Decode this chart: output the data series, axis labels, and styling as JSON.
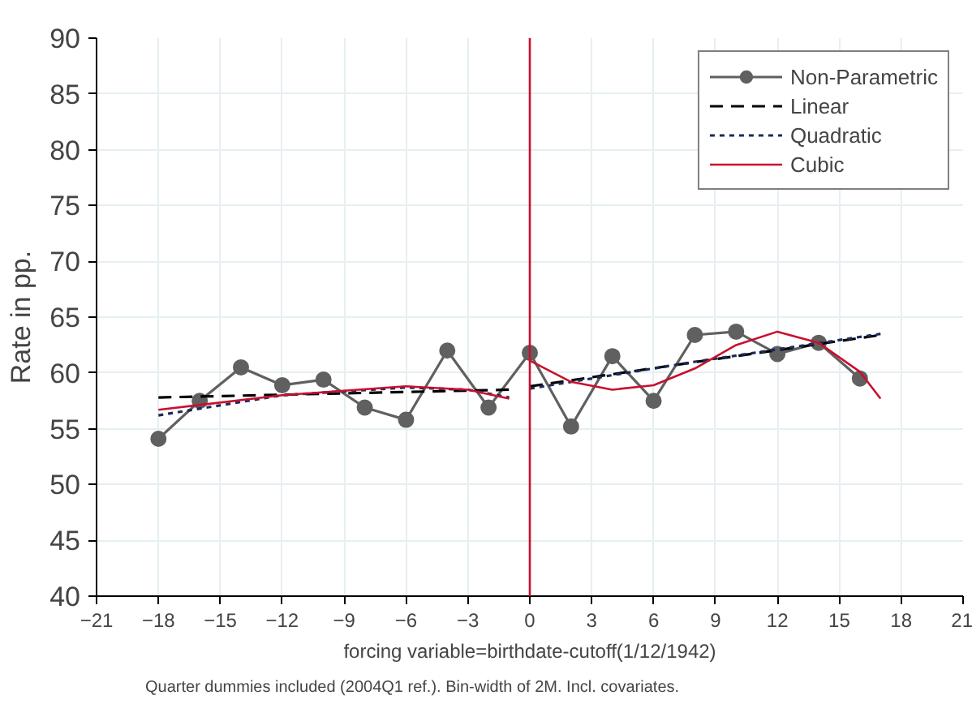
{
  "chart_data": {
    "type": "line",
    "xlabel": "forcing variable=birthdate-cutoff(1/12/1942)",
    "ylabel": "Rate in pp.",
    "annotations": [
      "Quarter dummies included (2004Q1 ref.). Bin-width of 2M. Incl. covariates."
    ],
    "xlim": [
      -21,
      21
    ],
    "ylim": [
      40,
      90
    ],
    "xticks": [
      -21,
      -18,
      -15,
      -12,
      -9,
      -6,
      -3,
      0,
      3,
      6,
      9,
      12,
      15,
      18,
      21
    ],
    "yticks": [
      40,
      45,
      50,
      55,
      60,
      65,
      70,
      75,
      80,
      85,
      90
    ],
    "grid": true,
    "legend": "top right",
    "ref_lines": [
      {
        "axis": "x",
        "value": 0,
        "color": "#c8102e",
        "line_style": "solid"
      }
    ],
    "series": [
      {
        "name": "Non-Parametric",
        "color": "#606060",
        "marker": "circle",
        "line_style": "solid",
        "x": [
          -18,
          -16,
          -14,
          -12,
          -10,
          -8,
          -6,
          -4,
          -2,
          0,
          2,
          4,
          6,
          8,
          10,
          12,
          14,
          16
        ],
        "values": [
          54.1,
          57.5,
          60.5,
          58.9,
          59.4,
          56.9,
          55.8,
          62.0,
          56.9,
          61.8,
          55.2,
          61.5,
          57.5,
          63.4,
          63.7,
          61.7,
          62.7,
          59.5
        ]
      },
      {
        "name": "Linear",
        "color": "#000000",
        "marker": "none",
        "line_style": "dashed",
        "x": [
          -18,
          -1,
          -0.5,
          0,
          17
        ],
        "values": [
          57.8,
          58.5,
          null,
          58.8,
          63.4
        ]
      },
      {
        "name": "Quadratic",
        "color": "#1a2a5a",
        "marker": "none",
        "line_style": "dotted",
        "x": [
          -18,
          -12,
          -6,
          -3,
          -1,
          -0.5,
          0,
          8,
          17
        ],
        "values": [
          56.2,
          58.0,
          58.7,
          58.5,
          57.8,
          null,
          58.6,
          61.0,
          63.5
        ]
      },
      {
        "name": "Cubic",
        "color": "#c8102e",
        "marker": "none",
        "line_style": "solid",
        "x": [
          -18,
          -12,
          -6,
          -3,
          -1,
          -0.5,
          0,
          2,
          4,
          6,
          8,
          10,
          12,
          14,
          16,
          17
        ],
        "values": [
          56.7,
          58.0,
          58.8,
          58.5,
          57.7,
          null,
          61.1,
          59.2,
          58.5,
          58.9,
          60.4,
          62.5,
          63.7,
          62.7,
          60.1,
          57.7
        ]
      }
    ]
  }
}
